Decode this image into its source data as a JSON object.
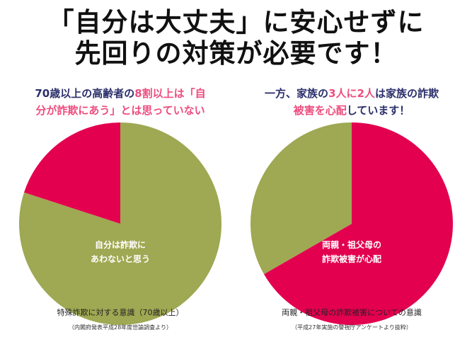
{
  "title": [
    "「自分は大丈夫」に安心せずに",
    "先回りの対策が必要です！"
  ],
  "colors": {
    "red": "#e2004f",
    "green": "#9fa852",
    "navy": "#2b2f6b",
    "pink": "#ee4d7f"
  },
  "chart_data": [
    {
      "type": "pie",
      "heading": {
        "line1_a": "70歳以上の高齢者の",
        "line1_b": "8割以上は「自",
        "line2": "分が詐欺にあう」とは思っていない"
      },
      "slices": [
        {
          "name": "自分は詐欺にあわないと思う",
          "value": 80,
          "color": "#9fa852",
          "label": [
            "自分は詐欺に",
            "あわないと思う"
          ]
        },
        {
          "name": "other",
          "value": 20,
          "color": "#e2004f"
        }
      ],
      "caption": "特殊詐欺に対する意識（70歳以上）",
      "source": "（内閣府発表平成28年度世論調査より）"
    },
    {
      "type": "pie",
      "heading": {
        "line1_a": "一方、家族の",
        "line1_b": "3人に2人",
        "line1_c": "は家族の詐欺",
        "line2_a": "被害を心配",
        "line2_b": "しています！"
      },
      "slices": [
        {
          "name": "両親・祖父母の詐欺被害が心配",
          "value": 66.7,
          "color": "#e2004f",
          "label": [
            "両親・祖父母の",
            "詐欺被害が心配"
          ]
        },
        {
          "name": "other",
          "value": 33.3,
          "color": "#9fa852"
        }
      ],
      "caption": "両親・祖父母の詐欺被害についての意識",
      "source": "（平成27年実施の警視庁アンケートより抜粋）"
    }
  ]
}
